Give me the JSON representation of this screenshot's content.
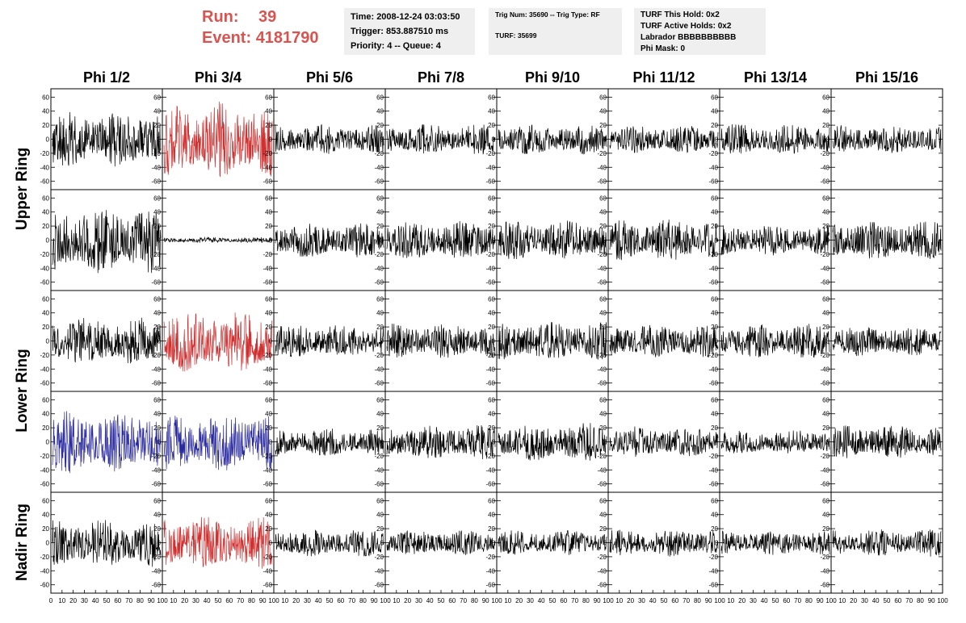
{
  "header": {
    "run_label": "Run:",
    "run_value": "39",
    "event_label": "Event:",
    "event_value": "4181790",
    "time_line": "Time: 2008-12-24 03:03:50",
    "trigger_line": "Trigger: 853.887510 ms",
    "priority_line": "Priority: 4 -- Queue: 4",
    "trig_num_line": "Trig Num: 35690 -- Trig Type: RF",
    "turf_line": "TURF: 35699",
    "turf_hold_line": "TURF This Hold: 0x2",
    "turf_active_line": "TURF Active Holds: 0x2",
    "labrador_line": "Labrador BBBBBBBBBB",
    "phi_mask_line": "Phi Mask: 0"
  },
  "colors": {
    "header_red": "#d9534f",
    "trace_black": "#000000",
    "trace_red": "#d03030",
    "trace_blue": "#2a2aa0"
  },
  "chart_data": {
    "type": "line",
    "columns": [
      "Phi 1/2",
      "Phi 3/4",
      "Phi 5/6",
      "Phi 7/8",
      "Phi 9/10",
      "Phi 11/12",
      "Phi 13/14",
      "Phi 15/16"
    ],
    "rows": [
      "Upper Ring",
      "Lower Ring",
      "Nadir Ring"
    ],
    "x_tick_labels": [
      "0",
      "10",
      "20",
      "30",
      "40",
      "50",
      "60",
      "70",
      "80",
      "90",
      "100"
    ],
    "y_tick_labels": [
      "60",
      "40",
      "20",
      "0",
      "-20",
      "-40",
      "-60"
    ],
    "xlim": [
      0,
      100
    ],
    "ylim": [
      -65,
      65
    ],
    "panel_rows": [
      {
        "ring": "Upper Ring",
        "traces": [
          {
            "color": "black",
            "amplitude": 40
          },
          {
            "color": "red",
            "amplitude": 55
          },
          {
            "color": "black",
            "amplitude": 22
          },
          {
            "color": "black",
            "amplitude": 22
          },
          {
            "color": "black",
            "amplitude": 22
          },
          {
            "color": "black",
            "amplitude": 20
          },
          {
            "color": "black",
            "amplitude": 22
          },
          {
            "color": "black",
            "amplitude": 20
          }
        ]
      },
      {
        "ring": "Upper Ring",
        "traces": [
          {
            "color": "black",
            "amplitude": 48
          },
          {
            "color": "black",
            "amplitude": 4
          },
          {
            "color": "black",
            "amplitude": 25
          },
          {
            "color": "black",
            "amplitude": 28
          },
          {
            "color": "black",
            "amplitude": 28
          },
          {
            "color": "black",
            "amplitude": 30
          },
          {
            "color": "black",
            "amplitude": 22
          },
          {
            "color": "black",
            "amplitude": 28
          }
        ]
      },
      {
        "ring": "Lower Ring",
        "traces": [
          {
            "color": "black",
            "amplitude": 35
          },
          {
            "color": "red",
            "amplitude": 45
          },
          {
            "color": "black",
            "amplitude": 25
          },
          {
            "color": "black",
            "amplitude": 25
          },
          {
            "color": "black",
            "amplitude": 28
          },
          {
            "color": "black",
            "amplitude": 24
          },
          {
            "color": "black",
            "amplitude": 25
          },
          {
            "color": "black",
            "amplitude": 22
          }
        ]
      },
      {
        "ring": "Lower Ring",
        "traces": [
          {
            "color": "blue",
            "amplitude": 45
          },
          {
            "color": "blue",
            "amplitude": 42
          },
          {
            "color": "black",
            "amplitude": 20
          },
          {
            "color": "black",
            "amplitude": 25
          },
          {
            "color": "black",
            "amplitude": 28
          },
          {
            "color": "black",
            "amplitude": 22
          },
          {
            "color": "black",
            "amplitude": 18
          },
          {
            "color": "black",
            "amplitude": 24
          }
        ]
      },
      {
        "ring": "Nadir Ring",
        "traces": [
          {
            "color": "black",
            "amplitude": 35
          },
          {
            "color": "red",
            "amplitude": 38
          },
          {
            "color": "black",
            "amplitude": 20
          },
          {
            "color": "black",
            "amplitude": 18
          },
          {
            "color": "black",
            "amplitude": 18
          },
          {
            "color": "black",
            "amplitude": 20
          },
          {
            "color": "black",
            "amplitude": 18
          },
          {
            "color": "black",
            "amplitude": 20
          }
        ]
      }
    ]
  }
}
